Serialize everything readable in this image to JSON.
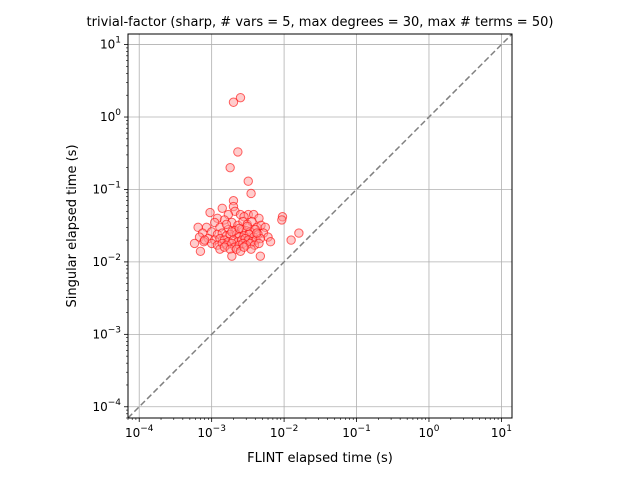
{
  "chart_data": {
    "type": "scatter",
    "title": "trivial-factor (sharp, # vars = 5, max degrees = 30, max # terms = 50)",
    "xlabel": "FLINT elapsed time (s)",
    "ylabel": "Singular elapsed time (s)",
    "xscale": "log",
    "yscale": "log",
    "xlim": [
      7e-05,
      14
    ],
    "ylim": [
      7e-05,
      14
    ],
    "grid": true,
    "xticks": [
      {
        "value": 0.0001,
        "base": "10",
        "exp": "−4"
      },
      {
        "value": 0.001,
        "base": "10",
        "exp": "−3"
      },
      {
        "value": 0.01,
        "base": "10",
        "exp": "−2"
      },
      {
        "value": 0.1,
        "base": "10",
        "exp": "−1"
      },
      {
        "value": 1,
        "base": "10",
        "exp": "0"
      },
      {
        "value": 10,
        "base": "10",
        "exp": "1"
      }
    ],
    "yticks": [
      {
        "value": 0.0001,
        "base": "10",
        "exp": "−4"
      },
      {
        "value": 0.001,
        "base": "10",
        "exp": "−3"
      },
      {
        "value": 0.01,
        "base": "10",
        "exp": "−2"
      },
      {
        "value": 0.1,
        "base": "10",
        "exp": "−1"
      },
      {
        "value": 1,
        "base": "10",
        "exp": "0"
      },
      {
        "value": 10,
        "base": "10",
        "exp": "1"
      }
    ],
    "reference_line": {
      "style": "dashed",
      "color": "#808080",
      "equation": "y = x"
    },
    "marker": {
      "shape": "circle",
      "edge_color": "#ff0000",
      "face_color": "#ff9a9a"
    },
    "points": [
      [
        0.0025,
        1.85
      ],
      [
        0.002,
        1.6
      ],
      [
        0.0023,
        0.33
      ],
      [
        0.0018,
        0.2
      ],
      [
        0.0032,
        0.13
      ],
      [
        0.0035,
        0.088
      ],
      [
        0.002,
        0.07
      ],
      [
        0.002,
        0.058
      ],
      [
        0.0021,
        0.05
      ],
      [
        0.0017,
        0.045
      ],
      [
        0.0025,
        0.045
      ],
      [
        0.0032,
        0.045
      ],
      [
        0.0038,
        0.045
      ],
      [
        0.00095,
        0.048
      ],
      [
        0.0014,
        0.055
      ],
      [
        0.0028,
        0.042
      ],
      [
        0.0012,
        0.04
      ],
      [
        0.0045,
        0.04
      ],
      [
        0.0095,
        0.042
      ],
      [
        0.0093,
        0.038
      ],
      [
        0.00085,
        0.03
      ],
      [
        0.0011,
        0.035
      ],
      [
        0.0015,
        0.038
      ],
      [
        0.0019,
        0.035
      ],
      [
        0.0023,
        0.032
      ],
      [
        0.0027,
        0.036
      ],
      [
        0.0031,
        0.033
      ],
      [
        0.0036,
        0.036
      ],
      [
        0.0042,
        0.03
      ],
      [
        0.0048,
        0.032
      ],
      [
        0.0055,
        0.03
      ],
      [
        0.00065,
        0.03
      ],
      [
        0.0013,
        0.03
      ],
      [
        0.0017,
        0.028
      ],
      [
        0.0021,
        0.027
      ],
      [
        0.0026,
        0.028
      ],
      [
        0.003,
        0.027
      ],
      [
        0.0034,
        0.026
      ],
      [
        0.004,
        0.028
      ],
      [
        0.00075,
        0.025
      ],
      [
        0.001,
        0.026
      ],
      [
        0.0012,
        0.024
      ],
      [
        0.0014,
        0.025
      ],
      [
        0.0016,
        0.023
      ],
      [
        0.0018,
        0.024
      ],
      [
        0.0022,
        0.024
      ],
      [
        0.0024,
        0.022
      ],
      [
        0.0028,
        0.023
      ],
      [
        0.0033,
        0.024
      ],
      [
        0.0038,
        0.022
      ],
      [
        0.0044,
        0.024
      ],
      [
        0.0052,
        0.025
      ],
      [
        0.006,
        0.022
      ],
      [
        0.016,
        0.025
      ],
      [
        0.00068,
        0.022
      ],
      [
        0.0009,
        0.021
      ],
      [
        0.0011,
        0.02
      ],
      [
        0.0013,
        0.021
      ],
      [
        0.0015,
        0.02
      ],
      [
        0.0017,
        0.019
      ],
      [
        0.002,
        0.02
      ],
      [
        0.0023,
        0.019
      ],
      [
        0.0026,
        0.02
      ],
      [
        0.0029,
        0.021
      ],
      [
        0.0032,
        0.02
      ],
      [
        0.0036,
        0.019
      ],
      [
        0.0041,
        0.02
      ],
      [
        0.0047,
        0.021
      ],
      [
        0.0065,
        0.019
      ],
      [
        0.0125,
        0.02
      ],
      [
        0.00058,
        0.018
      ],
      [
        0.00078,
        0.019
      ],
      [
        0.001,
        0.018
      ],
      [
        0.0012,
        0.017
      ],
      [
        0.0014,
        0.018
      ],
      [
        0.0016,
        0.017
      ],
      [
        0.0019,
        0.018
      ],
      [
        0.0021,
        0.016
      ],
      [
        0.0024,
        0.017
      ],
      [
        0.0027,
        0.018
      ],
      [
        0.003,
        0.017
      ],
      [
        0.0034,
        0.018
      ],
      [
        0.0039,
        0.017
      ],
      [
        0.0045,
        0.018
      ],
      [
        0.0013,
        0.015
      ],
      [
        0.0015,
        0.016
      ],
      [
        0.0018,
        0.015
      ],
      [
        0.0022,
        0.015
      ],
      [
        0.0025,
        0.014
      ],
      [
        0.0007,
        0.014
      ],
      [
        0.0019,
        0.012
      ],
      [
        0.0047,
        0.012
      ],
      [
        0.0035,
        0.015
      ],
      [
        0.0028,
        0.016
      ],
      [
        0.0008,
        0.02
      ],
      [
        0.0042,
        0.025
      ],
      [
        0.0031,
        0.031
      ],
      [
        0.0024,
        0.029
      ],
      [
        0.0016,
        0.033
      ],
      [
        0.0019,
        0.026
      ]
    ]
  }
}
